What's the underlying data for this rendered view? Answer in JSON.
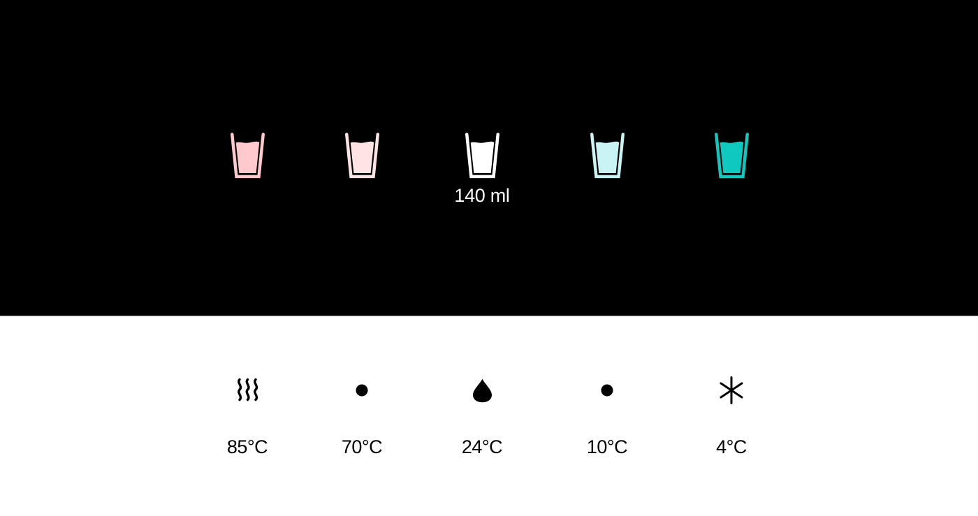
{
  "top_panel": {
    "background": "#000000",
    "cups": [
      {
        "name": "cup-1",
        "color": "#ffc9cd"
      },
      {
        "name": "cup-2",
        "color": "#ffe3e5"
      },
      {
        "name": "cup-3",
        "color": "#ffffff",
        "volume_label": "140 ml"
      },
      {
        "name": "cup-4",
        "color": "#c9f3f5"
      },
      {
        "name": "cup-5",
        "color": "#0fc8c0"
      }
    ]
  },
  "bottom_panel": {
    "background": "#ffffff",
    "icon_color": "#000000",
    "items": [
      {
        "icon": "steam-icon",
        "label": "85°C"
      },
      {
        "icon": "dot-icon",
        "label": "70°C"
      },
      {
        "icon": "drop-icon",
        "label": "24°C"
      },
      {
        "icon": "dot-icon",
        "label": "10°C"
      },
      {
        "icon": "snowflake-asterisk-icon",
        "label": "4°C"
      }
    ]
  }
}
